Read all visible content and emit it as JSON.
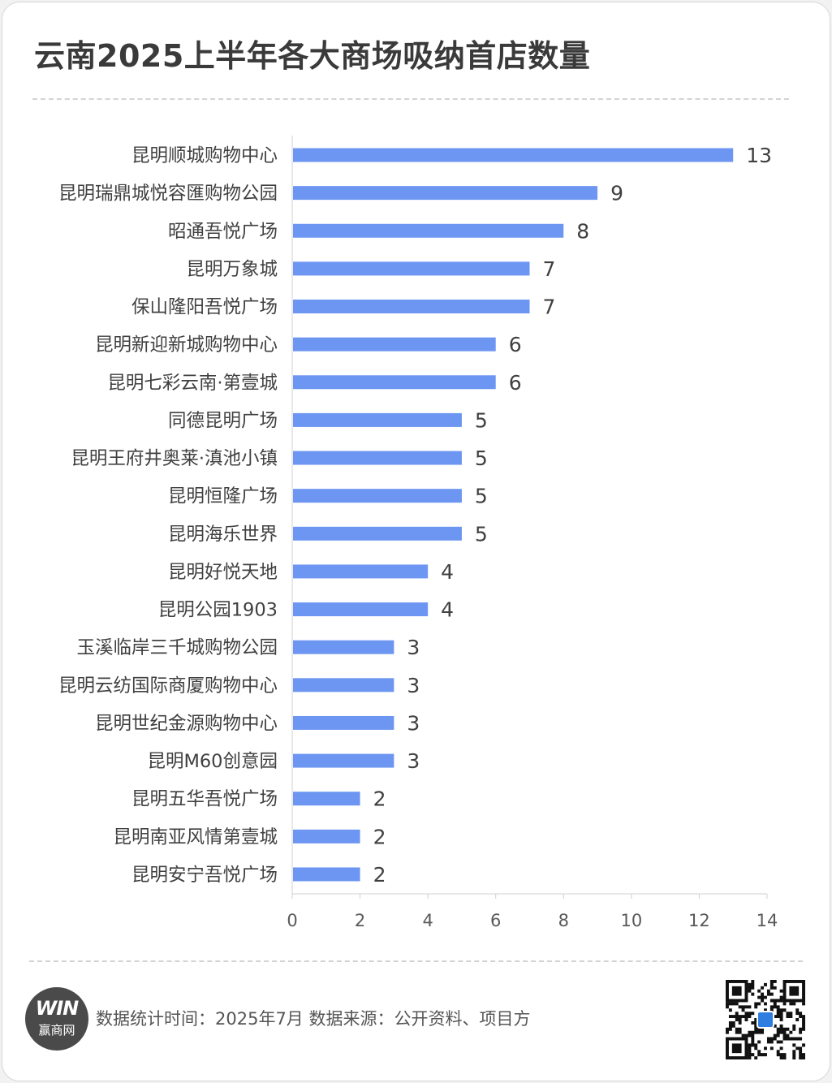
{
  "header": {
    "title": "云南2025上半年各大商场吸纳首店数量"
  },
  "chart_data": {
    "type": "bar",
    "orientation": "horizontal",
    "title": "云南2025上半年各大商场吸纳首店数量",
    "categories": [
      "昆明顺城购物中心",
      "昆明瑞鼎城悦容匯购物公园",
      "昭通吾悦广场",
      "昆明万象城",
      "保山隆阳吾悦广场",
      "昆明新迎新城购物中心",
      "昆明七彩云南·第壹城",
      "同德昆明广场",
      "昆明王府井奥莱·滇池小镇",
      "昆明恒隆广场",
      "昆明海乐世界",
      "昆明好悦天地",
      "昆明公园1903",
      "玉溪临岸三千城购物公园",
      "昆明云纺国际商厦购物中心",
      "昆明世纪金源购物中心",
      "昆明M60创意园",
      "昆明五华吾悦广场",
      "昆明南亚风情第壹城",
      "昆明安宁吾悦广场"
    ],
    "values": [
      13,
      9,
      8,
      7,
      7,
      6,
      6,
      5,
      5,
      5,
      5,
      4,
      4,
      3,
      3,
      3,
      3,
      2,
      2,
      2
    ],
    "xlim": [
      0,
      14
    ],
    "xticks": [
      "0",
      "2",
      "4",
      "6",
      "8",
      "10",
      "12",
      "14"
    ],
    "grid": false,
    "bar_color": "#6d96f2",
    "data_labels": true
  },
  "footer": {
    "logo_mark": "WIN",
    "logo_name": "赢商网",
    "source_text": "数据统计时间：2025年7月  数据来源：公开资料、项目方"
  }
}
